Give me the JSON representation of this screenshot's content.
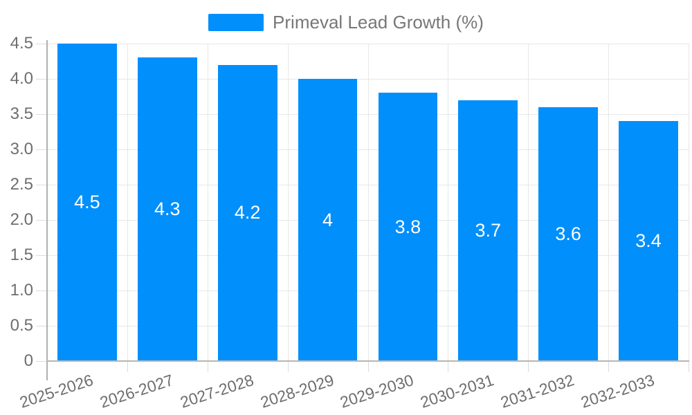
{
  "legend": {
    "label": "Primeval Lead Growth (%)"
  },
  "chart_data": {
    "type": "bar",
    "title": "",
    "xlabel": "",
    "ylabel": "",
    "categories": [
      "2025-2026",
      "2026-2027",
      "2027-2028",
      "2028-2029",
      "2029-2030",
      "2030-2031",
      "2031-2032",
      "2032-2033"
    ],
    "series": [
      {
        "name": "Primeval Lead Growth (%)",
        "values": [
          4.5,
          4.3,
          4.2,
          4,
          3.8,
          3.7,
          3.6,
          3.4
        ],
        "value_labels": [
          "4.5",
          "4.3",
          "4.2",
          "4",
          "3.8",
          "3.7",
          "3.6",
          "3.4"
        ],
        "color": "#008FFB"
      }
    ],
    "ylim": [
      0,
      4.5
    ],
    "ytick_step": 0.5,
    "ytick_labels": [
      "0",
      "0.5",
      "1.0",
      "1.5",
      "2.0",
      "2.5",
      "3.0",
      "3.5",
      "4.0",
      "4.5"
    ],
    "grid": true,
    "legend_position": "top",
    "x_label_rotation_deg": -18,
    "colors": {
      "bar": "#008FFB",
      "data_label": "#ffffff",
      "axis_text": "#6e6e6e",
      "legend_text": "#777779",
      "gridline": "#e7e7e7",
      "axis_line": "#b6b6b6",
      "background": "#ffffff"
    }
  }
}
